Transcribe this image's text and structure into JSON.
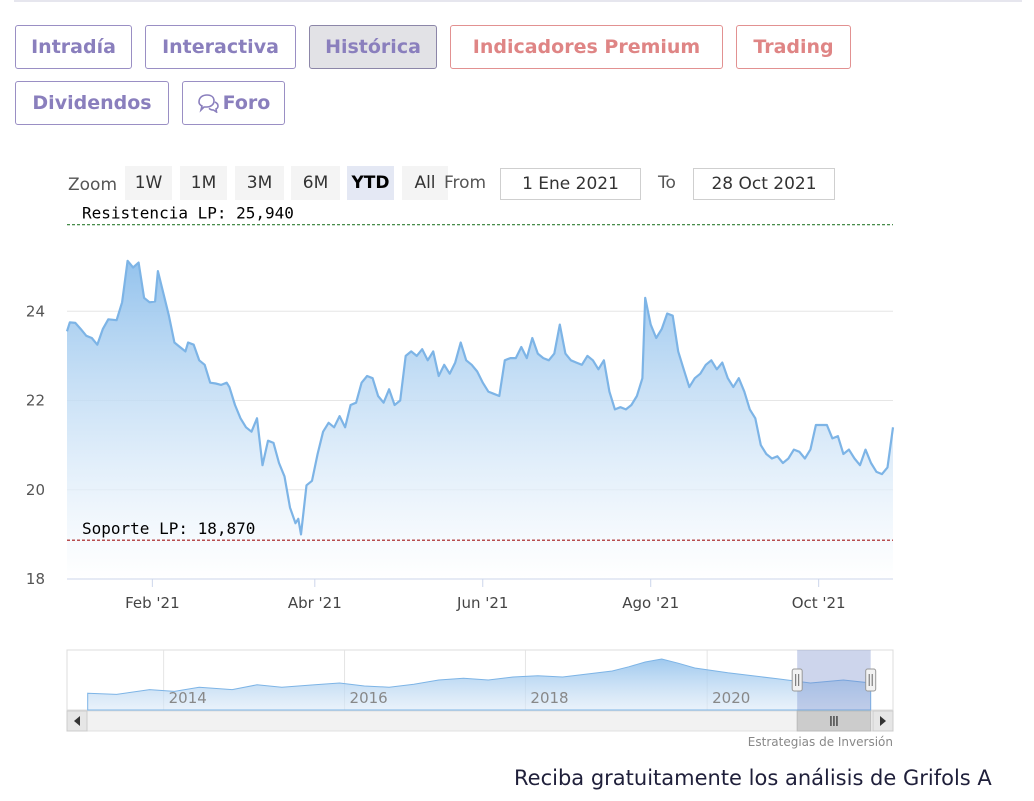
{
  "tabs": [
    {
      "label": "Intradía",
      "style": "purple",
      "active": false
    },
    {
      "label": "Interactiva",
      "style": "purple",
      "active": false
    },
    {
      "label": "Histórica",
      "style": "purple",
      "active": true
    },
    {
      "label": "Indicadores Premium",
      "style": "red",
      "active": false
    },
    {
      "label": "Trading",
      "style": "red",
      "active": false
    },
    {
      "label": "Dividendos",
      "style": "purple",
      "active": false
    },
    {
      "label": "Foro",
      "style": "purple",
      "active": false,
      "icon": "speech-bubbles-icon"
    }
  ],
  "range_selector": {
    "zoom_label": "Zoom",
    "buttons": [
      {
        "label": "1W",
        "active": false
      },
      {
        "label": "1M",
        "active": false
      },
      {
        "label": "3M",
        "active": false
      },
      {
        "label": "6M",
        "active": false
      },
      {
        "label": "YTD",
        "active": true
      },
      {
        "label": "All",
        "active": false
      }
    ],
    "from_label": "From",
    "from_value": "1 Ene 2021",
    "to_label": "To",
    "to_value": "28 Oct 2021"
  },
  "chart_data": {
    "type": "area",
    "x_start": "2021-01-01",
    "x_end": "2021-10-28",
    "ylim": [
      18,
      26
    ],
    "y_ticks": [
      18,
      20,
      22,
      24
    ],
    "x_ticks": [
      {
        "label": "Feb '21",
        "date": "2021-02-01"
      },
      {
        "label": "Abr '21",
        "date": "2021-04-01"
      },
      {
        "label": "Jun '21",
        "date": "2021-06-01"
      },
      {
        "label": "Ago '21",
        "date": "2021-08-01"
      },
      {
        "label": "Oct '21",
        "date": "2021-10-01"
      }
    ],
    "series": [
      {
        "points": [
          [
            "2021-01-01",
            23.55
          ],
          [
            "2021-01-02",
            23.75
          ],
          [
            "2021-01-04",
            23.74
          ],
          [
            "2021-01-06",
            23.6
          ],
          [
            "2021-01-08",
            23.45
          ],
          [
            "2021-01-10",
            23.4
          ],
          [
            "2021-01-12",
            23.25
          ],
          [
            "2021-01-14",
            23.6
          ],
          [
            "2021-01-16",
            23.82
          ],
          [
            "2021-01-19",
            23.8
          ],
          [
            "2021-01-21",
            24.2
          ],
          [
            "2021-01-23",
            25.13
          ],
          [
            "2021-01-25",
            24.98
          ],
          [
            "2021-01-27",
            25.09
          ],
          [
            "2021-01-29",
            24.3
          ],
          [
            "2021-01-31",
            24.2
          ],
          [
            "2021-02-02",
            24.22
          ],
          [
            "2021-02-03",
            24.9
          ],
          [
            "2021-02-05",
            24.4
          ],
          [
            "2021-02-07",
            23.9
          ],
          [
            "2021-02-09",
            23.3
          ],
          [
            "2021-02-11",
            23.2
          ],
          [
            "2021-02-13",
            23.1
          ],
          [
            "2021-02-14",
            23.3
          ],
          [
            "2021-02-16",
            23.25
          ],
          [
            "2021-02-18",
            22.9
          ],
          [
            "2021-02-20",
            22.8
          ],
          [
            "2021-02-22",
            22.4
          ],
          [
            "2021-02-24",
            22.38
          ],
          [
            "2021-02-26",
            22.35
          ],
          [
            "2021-02-28",
            22.4
          ],
          [
            "2021-03-01",
            22.3
          ],
          [
            "2021-03-03",
            21.9
          ],
          [
            "2021-03-05",
            21.6
          ],
          [
            "2021-03-07",
            21.4
          ],
          [
            "2021-03-09",
            21.3
          ],
          [
            "2021-03-11",
            21.6
          ],
          [
            "2021-03-13",
            20.55
          ],
          [
            "2021-03-15",
            21.1
          ],
          [
            "2021-03-17",
            21.05
          ],
          [
            "2021-03-19",
            20.6
          ],
          [
            "2021-03-21",
            20.3
          ],
          [
            "2021-03-23",
            19.6
          ],
          [
            "2021-03-25",
            19.25
          ],
          [
            "2021-03-26",
            19.35
          ],
          [
            "2021-03-27",
            19.0
          ],
          [
            "2021-03-29",
            20.1
          ],
          [
            "2021-03-31",
            20.2
          ],
          [
            "2021-04-02",
            20.8
          ],
          [
            "2021-04-04",
            21.3
          ],
          [
            "2021-04-06",
            21.5
          ],
          [
            "2021-04-08",
            21.4
          ],
          [
            "2021-04-10",
            21.65
          ],
          [
            "2021-04-12",
            21.4
          ],
          [
            "2021-04-14",
            21.9
          ],
          [
            "2021-04-16",
            21.95
          ],
          [
            "2021-04-18",
            22.4
          ],
          [
            "2021-04-20",
            22.55
          ],
          [
            "2021-04-22",
            22.5
          ],
          [
            "2021-04-24",
            22.1
          ],
          [
            "2021-04-26",
            21.95
          ],
          [
            "2021-04-28",
            22.25
          ],
          [
            "2021-04-30",
            21.9
          ],
          [
            "2021-05-02",
            22.0
          ],
          [
            "2021-05-04",
            23.0
          ],
          [
            "2021-05-06",
            23.1
          ],
          [
            "2021-05-08",
            23.0
          ],
          [
            "2021-05-10",
            23.15
          ],
          [
            "2021-05-12",
            22.9
          ],
          [
            "2021-05-14",
            23.1
          ],
          [
            "2021-05-16",
            22.55
          ],
          [
            "2021-05-18",
            22.8
          ],
          [
            "2021-05-20",
            22.6
          ],
          [
            "2021-05-22",
            22.85
          ],
          [
            "2021-05-24",
            23.3
          ],
          [
            "2021-05-26",
            22.9
          ],
          [
            "2021-05-28",
            22.8
          ],
          [
            "2021-05-30",
            22.65
          ],
          [
            "2021-06-01",
            22.4
          ],
          [
            "2021-06-03",
            22.2
          ],
          [
            "2021-06-05",
            22.15
          ],
          [
            "2021-06-07",
            22.1
          ],
          [
            "2021-06-09",
            22.9
          ],
          [
            "2021-06-11",
            22.95
          ],
          [
            "2021-06-13",
            22.95
          ],
          [
            "2021-06-15",
            23.2
          ],
          [
            "2021-06-17",
            22.95
          ],
          [
            "2021-06-19",
            23.4
          ],
          [
            "2021-06-21",
            23.05
          ],
          [
            "2021-06-23",
            22.95
          ],
          [
            "2021-06-25",
            22.9
          ],
          [
            "2021-06-27",
            23.05
          ],
          [
            "2021-06-29",
            23.7
          ],
          [
            "2021-07-01",
            23.05
          ],
          [
            "2021-07-03",
            22.9
          ],
          [
            "2021-07-05",
            22.85
          ],
          [
            "2021-07-07",
            22.8
          ],
          [
            "2021-07-09",
            23.0
          ],
          [
            "2021-07-11",
            22.9
          ],
          [
            "2021-07-13",
            22.7
          ],
          [
            "2021-07-15",
            22.9
          ],
          [
            "2021-07-17",
            22.2
          ],
          [
            "2021-07-19",
            21.8
          ],
          [
            "2021-07-21",
            21.85
          ],
          [
            "2021-07-23",
            21.8
          ],
          [
            "2021-07-25",
            21.9
          ],
          [
            "2021-07-27",
            22.1
          ],
          [
            "2021-07-29",
            22.5
          ],
          [
            "2021-07-30",
            24.3
          ],
          [
            "2021-08-01",
            23.7
          ],
          [
            "2021-08-03",
            23.4
          ],
          [
            "2021-08-05",
            23.6
          ],
          [
            "2021-08-07",
            23.95
          ],
          [
            "2021-08-09",
            23.9
          ],
          [
            "2021-08-11",
            23.1
          ],
          [
            "2021-08-13",
            22.7
          ],
          [
            "2021-08-15",
            22.3
          ],
          [
            "2021-08-17",
            22.5
          ],
          [
            "2021-08-19",
            22.6
          ],
          [
            "2021-08-21",
            22.8
          ],
          [
            "2021-08-23",
            22.9
          ],
          [
            "2021-08-25",
            22.7
          ],
          [
            "2021-08-27",
            22.85
          ],
          [
            "2021-08-29",
            22.5
          ],
          [
            "2021-08-31",
            22.3
          ],
          [
            "2021-09-02",
            22.5
          ],
          [
            "2021-09-04",
            22.2
          ],
          [
            "2021-09-06",
            21.8
          ],
          [
            "2021-09-08",
            21.6
          ],
          [
            "2021-09-10",
            21.0
          ],
          [
            "2021-09-12",
            20.8
          ],
          [
            "2021-09-14",
            20.7
          ],
          [
            "2021-09-16",
            20.75
          ],
          [
            "2021-09-18",
            20.6
          ],
          [
            "2021-09-20",
            20.7
          ],
          [
            "2021-09-22",
            20.9
          ],
          [
            "2021-09-24",
            20.85
          ],
          [
            "2021-09-26",
            20.7
          ],
          [
            "2021-09-28",
            20.9
          ],
          [
            "2021-09-30",
            21.45
          ],
          [
            "2021-10-02",
            21.45
          ],
          [
            "2021-10-04",
            21.45
          ],
          [
            "2021-10-06",
            21.15
          ],
          [
            "2021-10-08",
            21.2
          ],
          [
            "2021-10-10",
            20.8
          ],
          [
            "2021-10-12",
            20.9
          ],
          [
            "2021-10-14",
            20.7
          ],
          [
            "2021-10-16",
            20.55
          ],
          [
            "2021-10-18",
            20.9
          ],
          [
            "2021-10-20",
            20.6
          ],
          [
            "2021-10-22",
            20.4
          ],
          [
            "2021-10-24",
            20.35
          ],
          [
            "2021-10-26",
            20.5
          ],
          [
            "2021-10-28",
            21.4
          ]
        ]
      }
    ],
    "plot_lines": [
      {
        "label": "Resistencia LP: 25,940",
        "value": 25.94,
        "color": "#2e7d32"
      },
      {
        "label": "Soporte LP: 18,870",
        "value": 18.87,
        "color": "#a31515"
      }
    ],
    "navigator": {
      "x_ticks": [
        "2014",
        "2016",
        "2018",
        "2020"
      ],
      "selected_fraction": [
        0.884,
        0.973
      ]
    },
    "credit": "Estrategias de Inversión",
    "colors": {
      "line": "#7db4e6",
      "fill_top": "#8fc0ec",
      "fill_bottom": "#ffffff",
      "grid": "#e6e6e6",
      "axis": "#ccd6eb"
    }
  },
  "footer_text": "Reciba gratuitamente los análisis de Grifols A"
}
